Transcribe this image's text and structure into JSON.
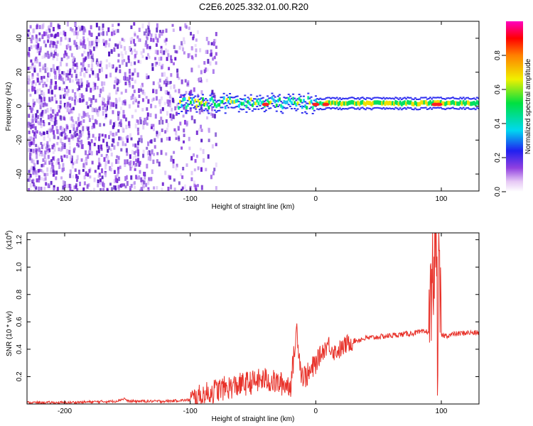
{
  "title": "C2E6.2025.332.01.00.R20",
  "colors": {
    "signal_line": "#e8322a",
    "axis": "#000000"
  },
  "chart_data": [
    {
      "type": "heatmap",
      "xlabel": "Height of straight line (km)",
      "ylabel": "Frequency (Hz)",
      "xlim": [
        -230,
        130
      ],
      "ylim": [
        -50,
        50
      ],
      "x_ticks": [
        -200,
        -100,
        0,
        100
      ],
      "y_ticks": [
        -40,
        -20,
        0,
        20,
        40
      ],
      "colorbar": {
        "label": "Normalized spectral amplitude",
        "range": [
          0,
          1
        ],
        "ticks": [
          "0.0",
          "0.2",
          "0.4",
          "0.6",
          "0.8"
        ],
        "colormap": "white-purple-blue-cyan-green-yellow-red-magenta"
      },
      "features": {
        "noise_region_km": [
          -230,
          -85
        ],
        "dominant_band_hz": 1,
        "band_start_km": -110,
        "peak_locations_km": [
          -40,
          0,
          8,
          95,
          98
        ]
      }
    },
    {
      "type": "line",
      "xlabel": "Height of straight line (km)",
      "ylabel": "SNR (10 * v/v)",
      "y_multiplier": "(x10",
      "y_multiplier_exp": "4",
      "y_multiplier_close": ")",
      "xlim": [
        -230,
        130
      ],
      "ylim": [
        0,
        1.25
      ],
      "x_ticks": [
        -200,
        -100,
        0,
        100
      ],
      "y_ticks": [
        "0.2",
        "0.4",
        "0.6",
        "0.8",
        "1.0",
        "1.2"
      ],
      "series": [
        {
          "x": [
            -230,
            -200,
            -160,
            -152,
            -150,
            -120,
            -100,
            -90,
            -80,
            -70,
            -60,
            -50,
            -40,
            -30,
            -20,
            -18,
            -15,
            -12,
            -10,
            -5,
            0,
            5,
            10,
            15,
            20,
            25,
            30,
            40,
            50,
            60,
            70,
            80,
            90,
            93,
            95,
            96,
            97,
            98,
            100,
            105,
            110,
            120,
            130
          ],
          "y": [
            0.01,
            0.01,
            0.02,
            0.04,
            0.02,
            0.02,
            0.03,
            0.06,
            0.1,
            0.12,
            0.14,
            0.16,
            0.18,
            0.15,
            0.14,
            0.3,
            0.55,
            0.25,
            0.2,
            0.22,
            0.3,
            0.38,
            0.44,
            0.38,
            0.4,
            0.44,
            0.46,
            0.48,
            0.49,
            0.5,
            0.51,
            0.52,
            0.53,
            0.95,
            1.05,
            1.25,
            0.3,
            0.98,
            0.5,
            0.5,
            0.51,
            0.52,
            0.52
          ]
        }
      ]
    }
  ]
}
